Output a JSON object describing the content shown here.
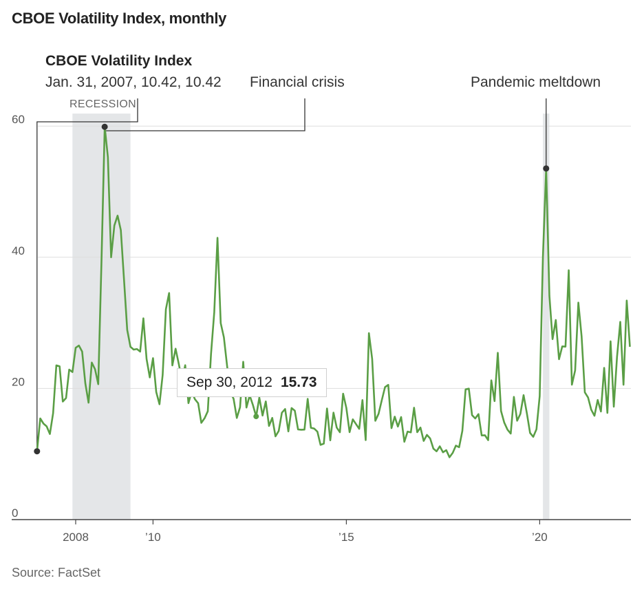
{
  "page": {
    "title": "CBOE Volatility Index, monthly",
    "source": "Source: FactSet"
  },
  "annotations": {
    "first_point": {
      "title": "CBOE Volatility Index",
      "label": "Jan. 31, 2007, 10.42, 10.42"
    },
    "financial_crisis": {
      "label": "Financial crisis"
    },
    "pandemic": {
      "label": "Pandemic meltdown"
    },
    "recession_label": "RECESSION"
  },
  "tooltip": {
    "date": "Sep 30, 2012",
    "value": "15.73"
  },
  "colors": {
    "line": "#5a9e45",
    "recession": "#e4e6e8",
    "grid": "#dddddd",
    "axis": "#444444",
    "dot": "#333333"
  },
  "chart_data": {
    "type": "line",
    "title": "CBOE Volatility Index, monthly",
    "xlabel": "",
    "ylabel": "",
    "ylim": [
      0,
      60
    ],
    "yticks": [
      0,
      20,
      40,
      60
    ],
    "xticks": [
      {
        "year": 2008,
        "label": "2008"
      },
      {
        "year": 2010,
        "label": "’10"
      },
      {
        "year": 2015,
        "label": "’15"
      },
      {
        "year": 2020,
        "label": "’20"
      }
    ],
    "grid": true,
    "recession_periods": [
      {
        "start": "2007-12",
        "end": "2009-06"
      },
      {
        "start": "2020-02",
        "end": "2020-04"
      }
    ],
    "start": "2007-01",
    "series": [
      {
        "values": [
          10.42,
          15.42,
          14.64,
          14.22,
          13.05,
          16.23,
          23.52,
          23.38,
          18.0,
          18.53,
          22.87,
          22.5,
          26.2,
          26.54,
          25.61,
          20.79,
          17.83,
          23.95,
          22.94,
          20.65,
          39.39,
          59.89,
          55.28,
          40.0,
          44.84,
          46.35,
          44.14,
          36.5,
          28.92,
          26.35,
          25.92,
          26.01,
          25.61,
          30.69,
          24.51,
          21.68,
          24.62,
          19.44,
          17.59,
          22.05,
          32.07,
          34.54,
          23.5,
          26.05,
          23.7,
          21.2,
          23.54,
          17.75,
          19.53,
          18.35,
          17.74,
          14.75,
          15.45,
          16.52,
          25.25,
          31.62,
          42.96,
          29.96,
          27.8,
          23.4,
          19.44,
          18.43,
          15.5,
          17.15,
          24.06,
          17.08,
          18.93,
          17.47,
          15.73,
          18.6,
          15.87,
          18.02,
          14.28,
          15.51,
          12.7,
          13.52,
          16.3,
          16.86,
          13.45,
          17.01,
          16.6,
          13.75,
          13.7,
          13.72,
          18.41,
          14.0,
          13.88,
          13.41,
          11.4,
          11.57,
          16.95,
          12.09,
          16.31,
          14.03,
          13.33,
          19.2,
          17.01,
          13.34,
          15.29,
          14.55,
          13.84,
          18.23,
          12.12,
          28.43,
          24.5,
          15.07,
          16.13,
          18.21,
          20.2,
          20.55,
          13.95,
          15.7,
          14.19,
          15.63,
          11.87,
          13.42,
          13.29,
          17.06,
          13.33,
          14.04,
          11.99,
          12.92,
          12.37,
          10.82,
          10.41,
          11.18,
          10.26,
          10.59,
          9.51,
          10.18,
          11.28,
          11.04,
          13.54,
          19.85,
          19.97,
          15.93,
          15.43,
          16.09,
          12.83,
          12.86,
          12.12,
          21.23,
          18.07,
          25.42,
          16.57,
          14.78,
          13.71,
          13.12,
          18.71,
          15.08,
          16.12,
          18.98,
          16.24,
          13.22,
          12.62,
          13.78,
          18.84,
          40.11,
          53.54,
          34.15,
          27.51,
          30.43,
          24.46,
          26.41,
          26.37,
          38.02,
          20.57,
          22.75,
          33.09,
          27.95,
          19.4,
          18.61,
          16.76,
          15.83,
          18.24,
          16.48,
          23.14,
          16.26,
          27.19,
          17.22,
          24.83,
          30.15,
          20.56,
          33.4,
          26.35
        ]
      }
    ]
  }
}
